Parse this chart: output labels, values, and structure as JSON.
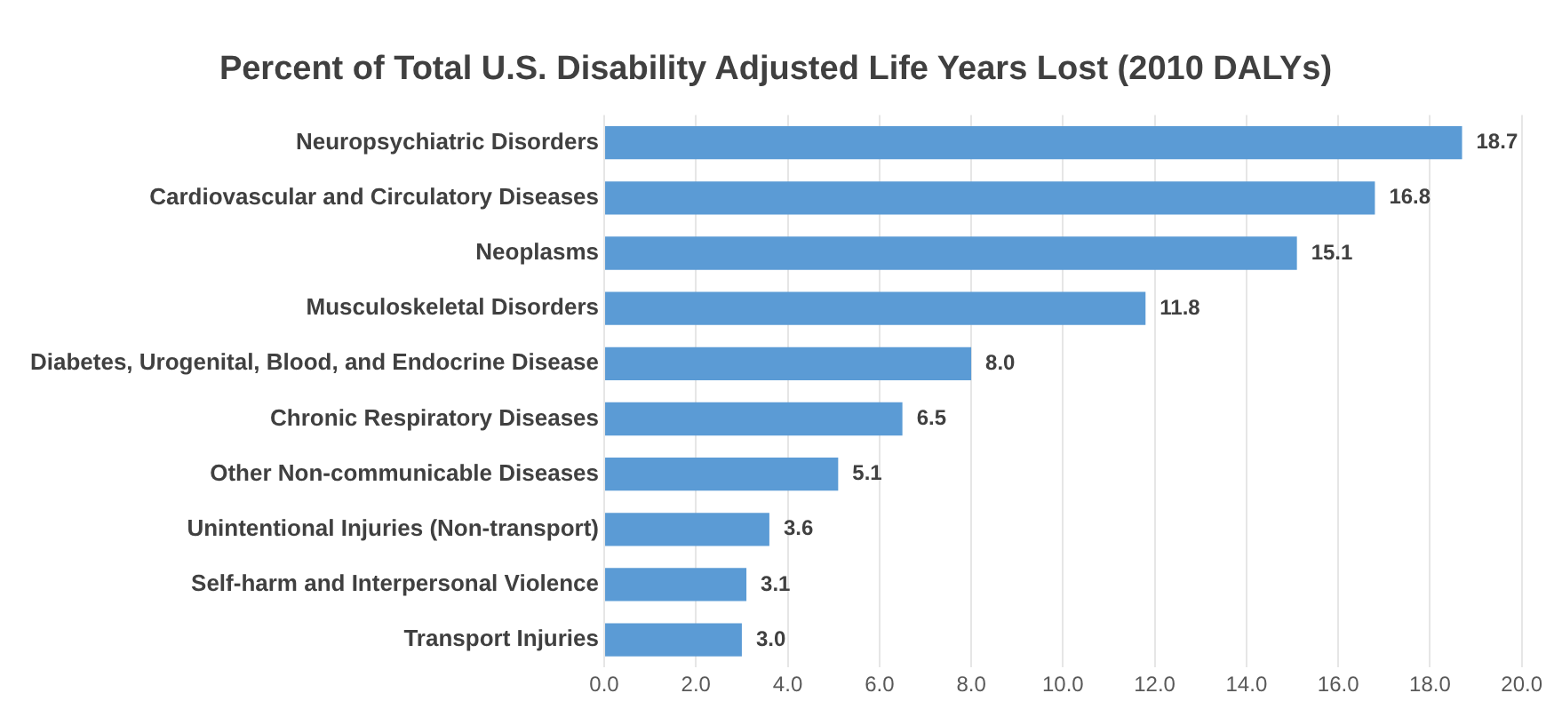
{
  "chart_data": {
    "type": "bar",
    "orientation": "horizontal",
    "title": "Percent of Total U.S. Disability Adjusted Life Years Lost (2010 DALYs)",
    "categories": [
      "Neuropsychiatric Disorders",
      "Cardiovascular and Circulatory Diseases",
      "Neoplasms",
      "Musculoskeletal Disorders",
      "Diabetes, Urogenital, Blood, and Endocrine Disease",
      "Chronic Respiratory Diseases",
      "Other Non-communicable Diseases",
      "Unintentional Injuries (Non-transport)",
      "Self-harm and Interpersonal Violence",
      "Transport Injuries"
    ],
    "values": [
      18.7,
      16.8,
      15.1,
      11.8,
      8.0,
      6.5,
      5.1,
      3.6,
      3.1,
      3.0
    ],
    "value_labels": [
      "18.7",
      "16.8",
      "15.1",
      "11.8",
      "8.0",
      "6.5",
      "5.1",
      "3.6",
      "3.1",
      "3.0"
    ],
    "color": "#5b9bd5",
    "xlim": [
      0,
      20
    ],
    "xticks": [
      {
        "value": 0,
        "label": "0.0"
      },
      {
        "value": 2,
        "label": "2.0"
      },
      {
        "value": 4,
        "label": "4.0"
      },
      {
        "value": 6,
        "label": "6.0"
      },
      {
        "value": 8,
        "label": "8.0"
      },
      {
        "value": 10,
        "label": "10.0"
      },
      {
        "value": 12,
        "label": "12.0"
      },
      {
        "value": 14,
        "label": "14.0"
      },
      {
        "value": 16,
        "label": "16.0"
      },
      {
        "value": 18,
        "label": "18.0"
      },
      {
        "value": 20,
        "label": "20.0"
      }
    ],
    "grid": "x"
  }
}
